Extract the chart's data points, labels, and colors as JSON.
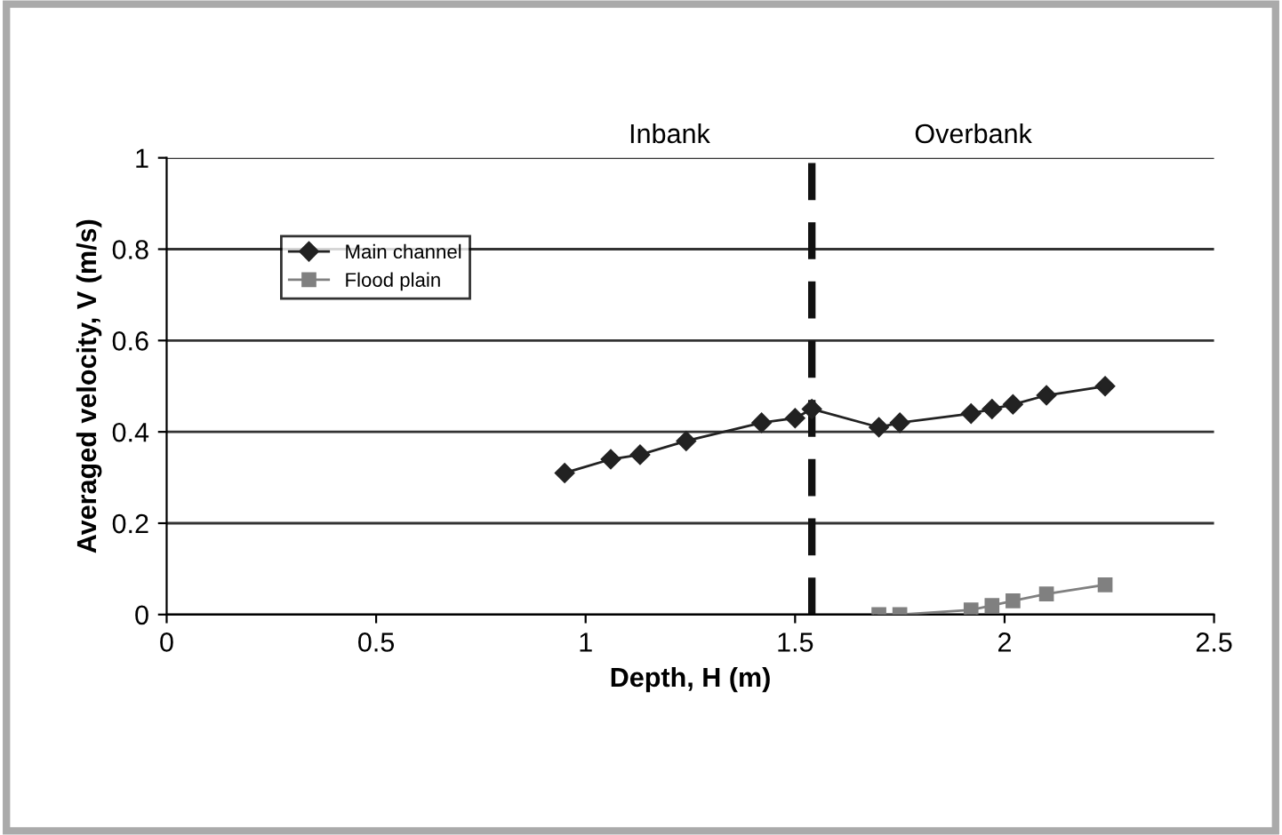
{
  "chart_data": {
    "type": "line",
    "xlabel": "Depth, H (m)",
    "ylabel": "Averaged velocity, V (m/s)",
    "xlim": [
      0,
      2.5
    ],
    "xticks": [
      0,
      0.5,
      1,
      1.5,
      2,
      2.5
    ],
    "ylim": [
      0,
      1
    ],
    "yticks": [
      0,
      0.2,
      0.4,
      0.6,
      0.8,
      1
    ],
    "grid": "y",
    "legend": "top left",
    "series": [
      {
        "name": "Main channel",
        "color": "#222222",
        "marker": "diamond",
        "x": [
          0.95,
          1.06,
          1.13,
          1.24,
          1.42,
          1.5,
          1.54,
          1.7,
          1.75,
          1.92,
          1.97,
          2.02,
          2.1,
          2.24
        ],
        "values": [
          0.31,
          0.34,
          0.35,
          0.38,
          0.42,
          0.43,
          0.45,
          0.41,
          0.42,
          0.44,
          0.45,
          0.46,
          0.48,
          0.5
        ]
      },
      {
        "name": "Flood plain",
        "color": "#808080",
        "marker": "square",
        "x": [
          1.7,
          1.75,
          1.92,
          1.97,
          2.02,
          2.1,
          2.24
        ],
        "values": [
          0.0,
          0.0,
          0.01,
          0.02,
          0.03,
          0.045,
          0.065
        ]
      }
    ],
    "ref_lines": [
      {
        "axis": "x",
        "value": 1.54,
        "color": "#111111",
        "line_style": "dashed"
      }
    ],
    "annotations": [
      "Inbank",
      "Overbank"
    ]
  }
}
